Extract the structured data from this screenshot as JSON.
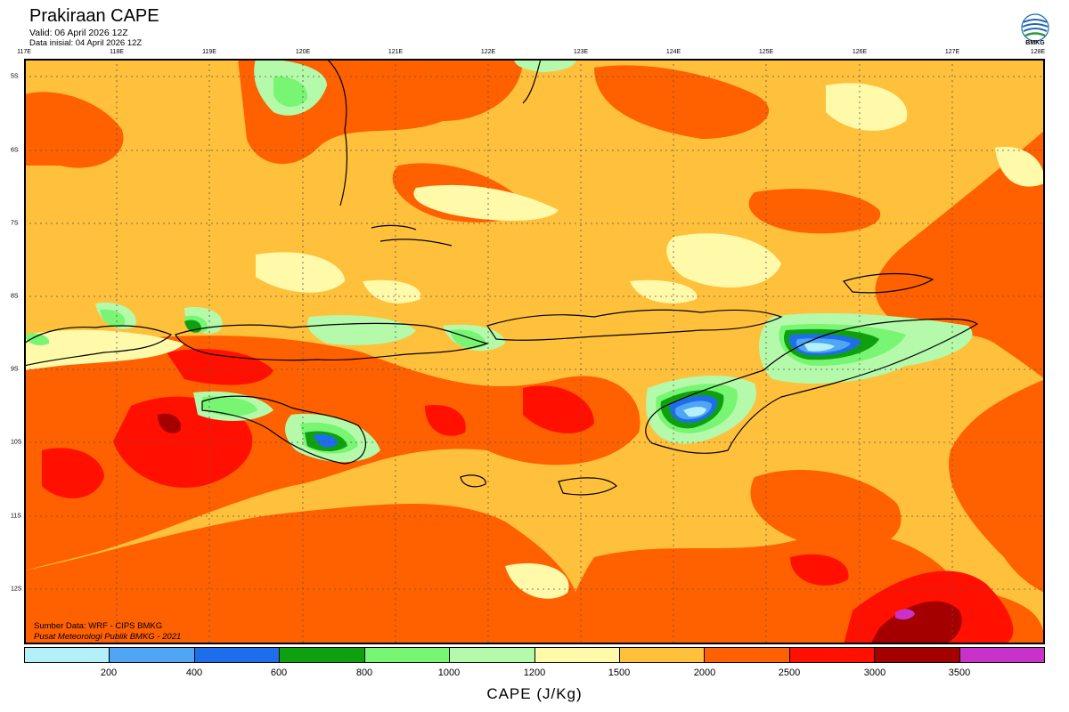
{
  "header": {
    "title": "Prakiraan CAPE",
    "valid": "Valid: 06 April 2026 12Z",
    "init": "Data inisial: 04 April 2026 12Z"
  },
  "logo": {
    "text": "BMKG",
    "icon": "bmkg-logo-icon"
  },
  "axes": {
    "lon_labels": [
      "117E",
      "118E",
      "119E",
      "120E",
      "121E",
      "122E",
      "123E",
      "124E",
      "125E",
      "126E",
      "127E",
      "128E"
    ],
    "lat_labels": [
      "5S",
      "6S",
      "7S",
      "8S",
      "9S",
      "10S",
      "11S",
      "12S"
    ]
  },
  "credits": {
    "source": "Sumber Data: WRF - CIPS BMKG",
    "org": "Pusat Meteorologi Publik BMKG - 2021"
  },
  "colorbar": {
    "title": "CAPE (J/Kg)",
    "ticks": [
      "200",
      "400",
      "600",
      "800",
      "1000",
      "1200",
      "1500",
      "2000",
      "2500",
      "3000",
      "3500"
    ],
    "colors": [
      "#b4f0fa",
      "#50a5f5",
      "#1e6eeb",
      "#0fa00f",
      "#78f573",
      "#b4faaa",
      "#fffaaa",
      "#ffc03c",
      "#ff6000",
      "#ff1000",
      "#a50000",
      "#c832c8"
    ]
  }
}
